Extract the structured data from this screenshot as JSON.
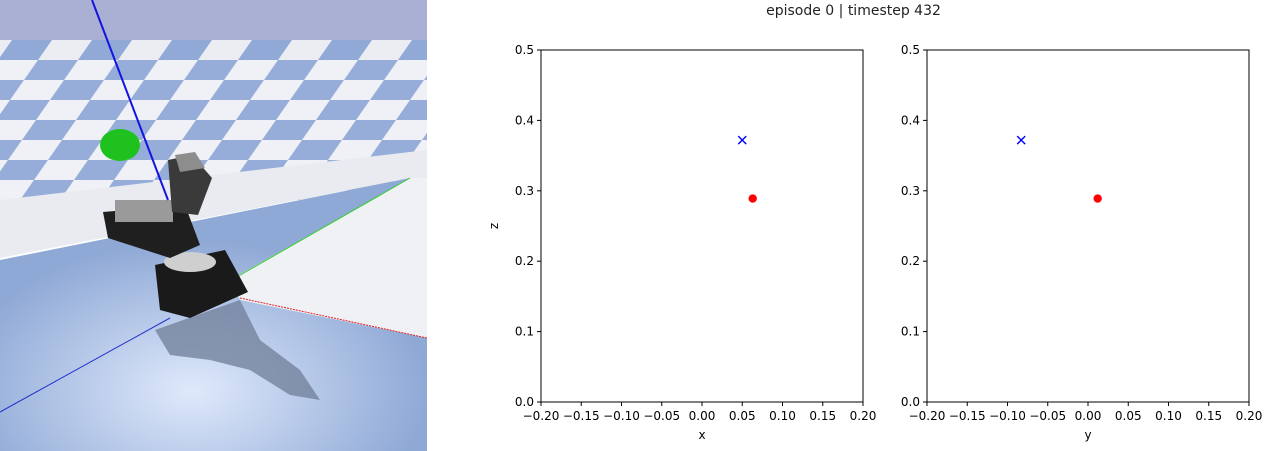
{
  "figure_title": "episode 0 | timestep 432",
  "sim_view": {
    "colors": {
      "sky": "#aab0d4",
      "floor_blue": "#8fa9d6",
      "floor_white": "#eef0f5",
      "robot": "#1a1a1a",
      "target": "#1fc11f",
      "ray": "#1414e0"
    }
  },
  "chart_data": [
    {
      "type": "scatter",
      "title": "",
      "xlabel": "x",
      "ylabel": "z",
      "xlim": [
        -0.2,
        0.2
      ],
      "ylim": [
        0.0,
        0.5
      ],
      "xticks": [
        "−0.20",
        "−0.15",
        "−0.10",
        "−0.05",
        "0.00",
        "0.05",
        "0.10",
        "0.15",
        "0.20"
      ],
      "yticks": [
        "0.0",
        "0.1",
        "0.2",
        "0.3",
        "0.4",
        "0.5"
      ],
      "grid": false,
      "series": [
        {
          "marker": "x",
          "color": "#0000ff",
          "points": [
            [
              0.05,
              0.372
            ]
          ]
        },
        {
          "marker": "circle",
          "color": "#ff0000",
          "points": [
            [
              0.063,
              0.289
            ]
          ]
        }
      ]
    },
    {
      "type": "scatter",
      "title": "",
      "xlabel": "y",
      "ylabel": "",
      "xlim": [
        -0.2,
        0.2
      ],
      "ylim": [
        0.0,
        0.5
      ],
      "xticks": [
        "−0.20",
        "−0.15",
        "−0.10",
        "−0.05",
        "0.00",
        "0.05",
        "0.10",
        "0.15",
        "0.20"
      ],
      "yticks": [
        "0.0",
        "0.1",
        "0.2",
        "0.3",
        "0.4",
        "0.5"
      ],
      "grid": false,
      "series": [
        {
          "marker": "x",
          "color": "#0000ff",
          "points": [
            [
              -0.083,
              0.372
            ]
          ]
        },
        {
          "marker": "circle",
          "color": "#ff0000",
          "points": [
            [
              0.012,
              0.289
            ]
          ]
        }
      ]
    }
  ]
}
